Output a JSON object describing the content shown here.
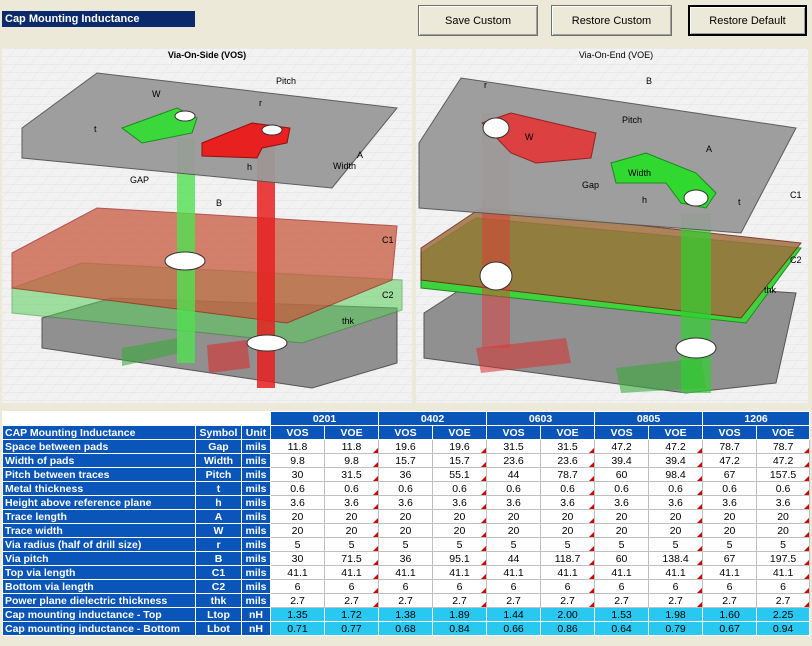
{
  "app": {
    "title": "Cap Mounting Inductance"
  },
  "toolbar": {
    "save_label": "Save Custom",
    "restore_custom_label": "Restore Custom",
    "restore_default_label": "Restore Default"
  },
  "diagrams": {
    "vos": {
      "title": "Via-On-Side (VOS)",
      "labels": {
        "w": "W",
        "pitch": "Pitch",
        "t": "t",
        "r": "r",
        "h": "h",
        "a": "A",
        "width": "Width",
        "gap": "GAP",
        "b": "B",
        "c1": "C1",
        "c2": "C2",
        "thk": "thk"
      }
    },
    "voe": {
      "title": "Via-On-End (VOE)",
      "labels": {
        "b": "B",
        "r": "r",
        "w": "W",
        "pitch": "Pitch",
        "a": "A",
        "gap": "Gap",
        "width": "Width",
        "h": "h",
        "t": "t",
        "c1": "C1",
        "c2": "C2",
        "thk": "thk"
      }
    }
  },
  "table": {
    "sizes": [
      "0201",
      "0402",
      "0603",
      "0805",
      "1206"
    ],
    "header": {
      "name": "CAP Mounting Inductance",
      "symbol": "Symbol",
      "unit": "Unit",
      "variants": [
        "VOS",
        "VOE"
      ]
    },
    "rows": [
      {
        "name": "Space between pads",
        "symbol": "Gap",
        "unit": "mils",
        "values": [
          "11.8",
          "11.8",
          "19.6",
          "19.6",
          "31.5",
          "31.5",
          "47.2",
          "47.2",
          "78.7",
          "78.7"
        ]
      },
      {
        "name": "Width of pads",
        "symbol": "Width",
        "unit": "mils",
        "values": [
          "9.8",
          "9.8",
          "15.7",
          "15.7",
          "23.6",
          "23.6",
          "39.4",
          "39.4",
          "47.2",
          "47.2"
        ]
      },
      {
        "name": "Pitch between traces",
        "symbol": "Pitch",
        "unit": "mils",
        "values": [
          "30",
          "31.5",
          "36",
          "55.1",
          "44",
          "78.7",
          "60",
          "98.4",
          "67",
          "157.5"
        ]
      },
      {
        "name": "Metal thickness",
        "symbol": "t",
        "unit": "mils",
        "values": [
          "0.6",
          "0.6",
          "0.6",
          "0.6",
          "0.6",
          "0.6",
          "0.6",
          "0.6",
          "0.6",
          "0.6"
        ]
      },
      {
        "name": "Height above reference plane",
        "symbol": "h",
        "unit": "mils",
        "values": [
          "3.6",
          "3.6",
          "3.6",
          "3.6",
          "3.6",
          "3.6",
          "3.6",
          "3.6",
          "3.6",
          "3.6"
        ]
      },
      {
        "name": "Trace length",
        "symbol": "A",
        "unit": "mils",
        "values": [
          "20",
          "20",
          "20",
          "20",
          "20",
          "20",
          "20",
          "20",
          "20",
          "20"
        ]
      },
      {
        "name": "Trace width",
        "symbol": "W",
        "unit": "mils",
        "values": [
          "20",
          "20",
          "20",
          "20",
          "20",
          "20",
          "20",
          "20",
          "20",
          "20"
        ]
      },
      {
        "name": "Via radius (half of drill size)",
        "symbol": "r",
        "unit": "mils",
        "values": [
          "5",
          "5",
          "5",
          "5",
          "5",
          "5",
          "5",
          "5",
          "5",
          "5"
        ]
      },
      {
        "name": "Via pitch",
        "symbol": "B",
        "unit": "mils",
        "values": [
          "30",
          "71.5",
          "36",
          "95.1",
          "44",
          "118.7",
          "60",
          "138.4",
          "67",
          "197.5"
        ]
      },
      {
        "name": "Top via length",
        "symbol": "C1",
        "unit": "mils",
        "values": [
          "41.1",
          "41.1",
          "41.1",
          "41.1",
          "41.1",
          "41.1",
          "41.1",
          "41.1",
          "41.1",
          "41.1"
        ]
      },
      {
        "name": "Bottom via length",
        "symbol": "C2",
        "unit": "mils",
        "values": [
          "6",
          "6",
          "6",
          "6",
          "6",
          "6",
          "6",
          "6",
          "6",
          "6"
        ]
      },
      {
        "name": "Power plane dielectric thickness",
        "symbol": "thk",
        "unit": "mils",
        "values": [
          "2.7",
          "2.7",
          "2.7",
          "2.7",
          "2.7",
          "2.7",
          "2.7",
          "2.7",
          "2.7",
          "2.7"
        ]
      }
    ],
    "results": [
      {
        "name": "Cap mounting inductance - Top",
        "symbol": "Ltop",
        "unit": "nH",
        "values": [
          "1.35",
          "1.72",
          "1.38",
          "1.89",
          "1.44",
          "2.00",
          "1.53",
          "1.98",
          "1.60",
          "2.25"
        ]
      },
      {
        "name": "Cap mounting inductance - Bottom",
        "symbol": "Lbot",
        "unit": "nH",
        "values": [
          "0.71",
          "0.77",
          "0.68",
          "0.84",
          "0.66",
          "0.86",
          "0.64",
          "0.79",
          "0.67",
          "0.94"
        ]
      }
    ]
  }
}
